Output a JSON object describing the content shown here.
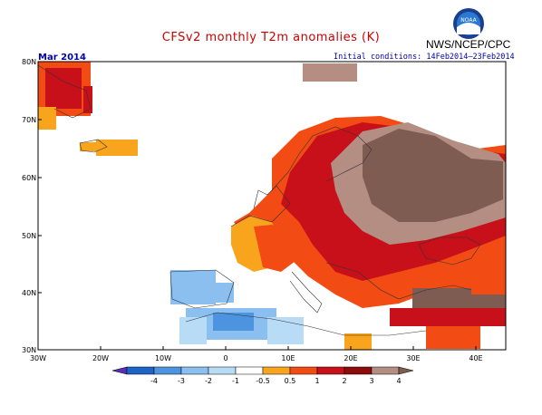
{
  "header": {
    "title": "CFSv2 monthly T2m anomalies (K)",
    "agency": "NWS/NCEP/CPC",
    "logo_text": "NOAA",
    "month": "Mar 2014",
    "initial_conditions": "Initial conditions: 14Feb2014–23Feb2014"
  },
  "map": {
    "lat_labels": [
      "80N",
      "70N",
      "60N",
      "50N",
      "40N",
      "30N"
    ],
    "lon_labels": [
      "30W",
      "20W",
      "10W",
      "0",
      "10E",
      "20E",
      "30E",
      "40E"
    ],
    "region": "Europe",
    "colors": {
      "ocean": "#ffffff",
      "coast": "#555555"
    }
  },
  "colorbar": {
    "labels": [
      "-4",
      "-3",
      "-2",
      "-1",
      "-0.5",
      "0.5",
      "1",
      "2",
      "3",
      "4"
    ],
    "colors": [
      "#5a2fb5",
      "#1d63c8",
      "#4c93e0",
      "#8bbff0",
      "#b8dcf6",
      "#ffffff",
      "#f8a51d",
      "#f24b13",
      "#c8101a",
      "#8c0b0b",
      "#b48d83",
      "#7f5c52"
    ]
  }
}
